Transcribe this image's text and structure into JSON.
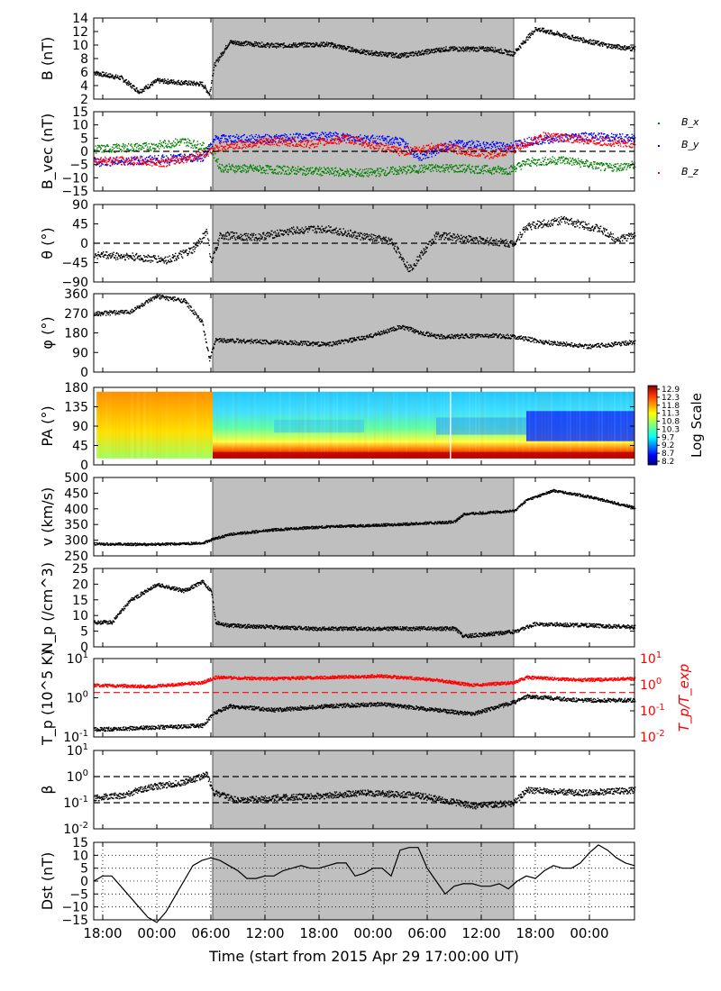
{
  "figure": {
    "xlabel": "Time (start from 2015 Apr 29 17:00:00 UT)",
    "x_tick_labels": [
      "18:00",
      "00:00",
      "06:00",
      "12:00",
      "18:00",
      "00:00",
      "06:00",
      "12:00",
      "18:00",
      "00:00"
    ],
    "x_tick_hours": [
      1,
      7,
      13,
      19,
      25,
      31,
      37,
      43,
      49,
      55
    ],
    "x_range_hours": [
      0,
      60
    ],
    "shaded_interval_hours": [
      13.2,
      46.6
    ],
    "colors": {
      "shade": "#bfbfbf",
      "bx": "#008000",
      "by": "#0000ff",
      "bz": "#ff0000",
      "ratio": "#ff0000",
      "data": "#000000"
    }
  },
  "chart_data": [
    {
      "type": "scatter",
      "ylabel": "B (nT)",
      "ylim": [
        2,
        14
      ],
      "yticks": [
        "2",
        "4",
        "6",
        "8",
        "10",
        "12",
        "14"
      ],
      "series": [
        {
          "values_by_hour": [
            [
              0,
              6
            ],
            [
              3,
              5.2
            ],
            [
              5,
              3.2
            ],
            [
              7,
              4.8
            ],
            [
              10,
              4.5
            ],
            [
              12,
              4.3
            ],
            [
              12.8,
              2.8
            ],
            [
              13.3,
              7
            ],
            [
              15,
              10.5
            ],
            [
              20,
              10
            ],
            [
              26,
              10.2
            ],
            [
              30,
              9
            ],
            [
              34,
              8.5
            ],
            [
              39,
              9.5
            ],
            [
              44,
              9.5
            ],
            [
              46.5,
              8.8
            ],
            [
              49,
              12.5
            ],
            [
              53,
              11.2
            ],
            [
              57,
              10
            ],
            [
              60,
              9.5
            ]
          ]
        }
      ]
    },
    {
      "type": "scatter",
      "ylabel": "B_vec (nT)",
      "ylim": [
        -15,
        15
      ],
      "yticks": [
        "−15",
        "−10",
        "−5",
        "0",
        "5",
        "10",
        "15"
      ],
      "legend": [
        "B_x",
        "B_y",
        "B_z"
      ],
      "series": [
        {
          "name": "B_x",
          "values_by_hour": [
            [
              0,
              1
            ],
            [
              6,
              2
            ],
            [
              10,
              4
            ],
            [
              13,
              1
            ],
            [
              14,
              -6
            ],
            [
              22,
              -7
            ],
            [
              30,
              -8
            ],
            [
              38,
              -6
            ],
            [
              46,
              -7
            ],
            [
              48,
              -4
            ],
            [
              52,
              -3
            ],
            [
              57,
              -6
            ],
            [
              60,
              -5
            ]
          ]
        },
        {
          "name": "B_y",
          "values_by_hour": [
            [
              0,
              -4
            ],
            [
              6,
              -3
            ],
            [
              12,
              -2
            ],
            [
              13.5,
              5
            ],
            [
              20,
              5
            ],
            [
              26,
              6
            ],
            [
              34,
              4
            ],
            [
              36,
              -2
            ],
            [
              40,
              3
            ],
            [
              46,
              2
            ],
            [
              48,
              4
            ],
            [
              54,
              6
            ],
            [
              60,
              5
            ]
          ]
        },
        {
          "name": "B_z",
          "values_by_hour": [
            [
              0,
              -3
            ],
            [
              8,
              -4
            ],
            [
              12,
              -1
            ],
            [
              14,
              2
            ],
            [
              20,
              4
            ],
            [
              24,
              3
            ],
            [
              28,
              5
            ],
            [
              34,
              0
            ],
            [
              38,
              2
            ],
            [
              44,
              -1
            ],
            [
              46.5,
              1
            ],
            [
              50,
              6
            ],
            [
              56,
              4
            ],
            [
              60,
              3
            ]
          ]
        }
      ]
    },
    {
      "type": "scatter",
      "ylabel": "θ (°)",
      "ylim": [
        -90,
        90
      ],
      "yticks": [
        "−90",
        "−45",
        "0",
        "45",
        "90"
      ],
      "reference_lines": [
        0
      ],
      "series": [
        {
          "values_by_hour": [
            [
              0,
              -25
            ],
            [
              4,
              -30
            ],
            [
              8,
              -38
            ],
            [
              11,
              -15
            ],
            [
              12.5,
              30
            ],
            [
              13,
              -45
            ],
            [
              14,
              20
            ],
            [
              18,
              15
            ],
            [
              22,
              30
            ],
            [
              26,
              35
            ],
            [
              29,
              20
            ],
            [
              33,
              5
            ],
            [
              35,
              -60
            ],
            [
              38,
              20
            ],
            [
              42,
              10
            ],
            [
              46.5,
              0
            ],
            [
              48,
              40
            ],
            [
              52,
              55
            ],
            [
              56,
              35
            ],
            [
              58,
              10
            ],
            [
              60,
              20
            ]
          ]
        }
      ]
    },
    {
      "type": "scatter",
      "ylabel": "φ (°)",
      "ylim": [
        0,
        360
      ],
      "yticks": [
        "0",
        "90",
        "180",
        "270",
        "360"
      ],
      "series": [
        {
          "values_by_hour": [
            [
              0,
              270
            ],
            [
              4,
              280
            ],
            [
              7,
              350
            ],
            [
              10,
              330
            ],
            [
              12,
              230
            ],
            [
              12.8,
              60
            ],
            [
              13.5,
              150
            ],
            [
              20,
              140
            ],
            [
              26,
              130
            ],
            [
              30,
              160
            ],
            [
              34,
              210
            ],
            [
              38,
              165
            ],
            [
              44,
              170
            ],
            [
              46.6,
              165
            ],
            [
              50,
              140
            ],
            [
              55,
              120
            ],
            [
              60,
              140
            ]
          ]
        }
      ]
    },
    {
      "type": "heatmap",
      "ylabel": "PA (°)",
      "ylim": [
        0,
        180
      ],
      "yticks": [
        "0",
        "45",
        "90",
        "135",
        "180"
      ],
      "colorbar_label": "Log Scale",
      "colorbar_ticks": [
        "8.2",
        "8.7",
        "9.2",
        "9.7",
        "10.3",
        "10.8",
        "11.3",
        "11.8",
        "12.3",
        "12.9"
      ]
    },
    {
      "type": "scatter",
      "ylabel": "v (km/s)",
      "ylim": [
        250,
        500
      ],
      "yticks": [
        "250",
        "300",
        "350",
        "400",
        "450",
        "500"
      ],
      "series": [
        {
          "values_by_hour": [
            [
              0,
              290
            ],
            [
              6,
              288
            ],
            [
              12,
              292
            ],
            [
              13.2,
              305
            ],
            [
              15,
              320
            ],
            [
              20,
              335
            ],
            [
              26,
              345
            ],
            [
              32,
              350
            ],
            [
              36,
              355
            ],
            [
              40,
              360
            ],
            [
              41,
              385
            ],
            [
              46.6,
              395
            ],
            [
              48,
              430
            ],
            [
              51,
              460
            ],
            [
              55,
              440
            ],
            [
              60,
              405
            ]
          ]
        }
      ]
    },
    {
      "type": "scatter",
      "ylabel": "N_p (/cm^3)",
      "ylim": [
        0,
        25
      ],
      "yticks": [
        "0",
        "5",
        "10",
        "15",
        "20",
        "25"
      ],
      "series": [
        {
          "values_by_hour": [
            [
              0,
              8
            ],
            [
              2,
              8
            ],
            [
              4,
              15
            ],
            [
              7,
              20
            ],
            [
              10,
              18
            ],
            [
              12,
              21
            ],
            [
              13,
              18
            ],
            [
              13.5,
              8
            ],
            [
              15,
              7
            ],
            [
              24,
              6
            ],
            [
              32,
              6
            ],
            [
              40,
              6
            ],
            [
              41,
              3.5
            ],
            [
              46.6,
              5
            ],
            [
              49,
              7.5
            ],
            [
              55,
              7
            ],
            [
              60,
              6.5
            ]
          ]
        }
      ]
    },
    {
      "type": "scatter",
      "ylabel": "T_p (10^5 K)",
      "ylim_log10": [
        -1,
        1
      ],
      "yticks": [
        "10^-1",
        "10^0",
        "10^1"
      ],
      "right_ylabel": "T_p/T_exp",
      "right_ylim_log10": [
        -2,
        1
      ],
      "right_yticks": [
        "10^-2",
        "10^-1",
        "10^0",
        "10^1"
      ],
      "series": [
        {
          "name": "T_p",
          "log10_by_hour": [
            [
              0,
              -0.8
            ],
            [
              6,
              -0.75
            ],
            [
              12,
              -0.7
            ],
            [
              13.2,
              -0.4
            ],
            [
              15,
              -0.2
            ],
            [
              20,
              -0.3
            ],
            [
              26,
              -0.2
            ],
            [
              32,
              -0.15
            ],
            [
              38,
              -0.3
            ],
            [
              42,
              -0.4
            ],
            [
              46.6,
              -0.1
            ],
            [
              48,
              0.05
            ],
            [
              54,
              -0.05
            ],
            [
              60,
              -0.05
            ]
          ]
        },
        {
          "name": "T_p/T_exp",
          "log10_by_hour": [
            [
              0,
              0.0
            ],
            [
              6,
              -0.05
            ],
            [
              12,
              0.1
            ],
            [
              13.5,
              0.3
            ],
            [
              20,
              0.25
            ],
            [
              26,
              0.3
            ],
            [
              32,
              0.35
            ],
            [
              38,
              0.2
            ],
            [
              42,
              0.0
            ],
            [
              46.6,
              0.1
            ],
            [
              48,
              0.3
            ],
            [
              54,
              0.2
            ],
            [
              60,
              0.25
            ]
          ]
        }
      ],
      "reference_lines_right_log10": [
        -0.3
      ]
    },
    {
      "type": "scatter",
      "ylabel": "β",
      "ylim_log10": [
        -2,
        1
      ],
      "yticks": [
        "10^-2",
        "10^-1",
        "10^0",
        "10^1"
      ],
      "reference_lines_log10": [
        0,
        -1
      ],
      "series": [
        {
          "log10_by_hour": [
            [
              0,
              -0.8
            ],
            [
              3,
              -0.7
            ],
            [
              6,
              -0.4
            ],
            [
              10,
              -0.2
            ],
            [
              12.5,
              0.1
            ],
            [
              13.3,
              -0.6
            ],
            [
              16,
              -0.9
            ],
            [
              20,
              -0.8
            ],
            [
              26,
              -0.7
            ],
            [
              30,
              -0.6
            ],
            [
              36,
              -0.7
            ],
            [
              42,
              -1.1
            ],
            [
              46.5,
              -1.0
            ],
            [
              48,
              -0.5
            ],
            [
              54,
              -0.6
            ],
            [
              60,
              -0.5
            ]
          ]
        }
      ]
    },
    {
      "type": "line",
      "ylabel": "Dst (nT)",
      "ylim": [
        -15,
        15
      ],
      "yticks": [
        "−15",
        "−10",
        "−5",
        "0",
        "5",
        "10",
        "15"
      ],
      "grid": true,
      "x_hours": [
        0,
        1,
        2,
        3,
        4,
        5,
        6,
        7,
        8,
        9,
        10,
        11,
        12,
        13,
        14,
        15,
        16,
        17,
        18,
        19,
        20,
        21,
        22,
        23,
        24,
        25,
        26,
        27,
        28,
        29,
        30,
        31,
        32,
        33,
        34,
        35,
        36,
        37,
        38,
        39,
        40,
        41,
        42,
        43,
        44,
        45,
        46,
        47,
        48,
        49,
        50,
        51,
        52,
        53,
        54,
        55,
        56,
        57,
        58,
        59,
        60
      ],
      "values": [
        0,
        2,
        2,
        -2,
        -6,
        -10,
        -14,
        -16,
        -12,
        -6,
        0,
        6,
        8,
        9,
        8,
        6,
        4,
        1,
        1,
        2,
        2,
        4,
        5,
        6,
        5,
        5,
        6,
        7,
        7,
        2,
        3,
        5,
        5,
        2,
        12,
        13,
        13,
        5,
        0,
        -5,
        -2,
        -1,
        -1,
        -2,
        -2,
        -1,
        -3,
        0,
        2,
        1,
        4,
        6,
        5,
        5,
        7,
        11,
        14,
        12,
        9,
        7,
        6
      ]
    }
  ]
}
